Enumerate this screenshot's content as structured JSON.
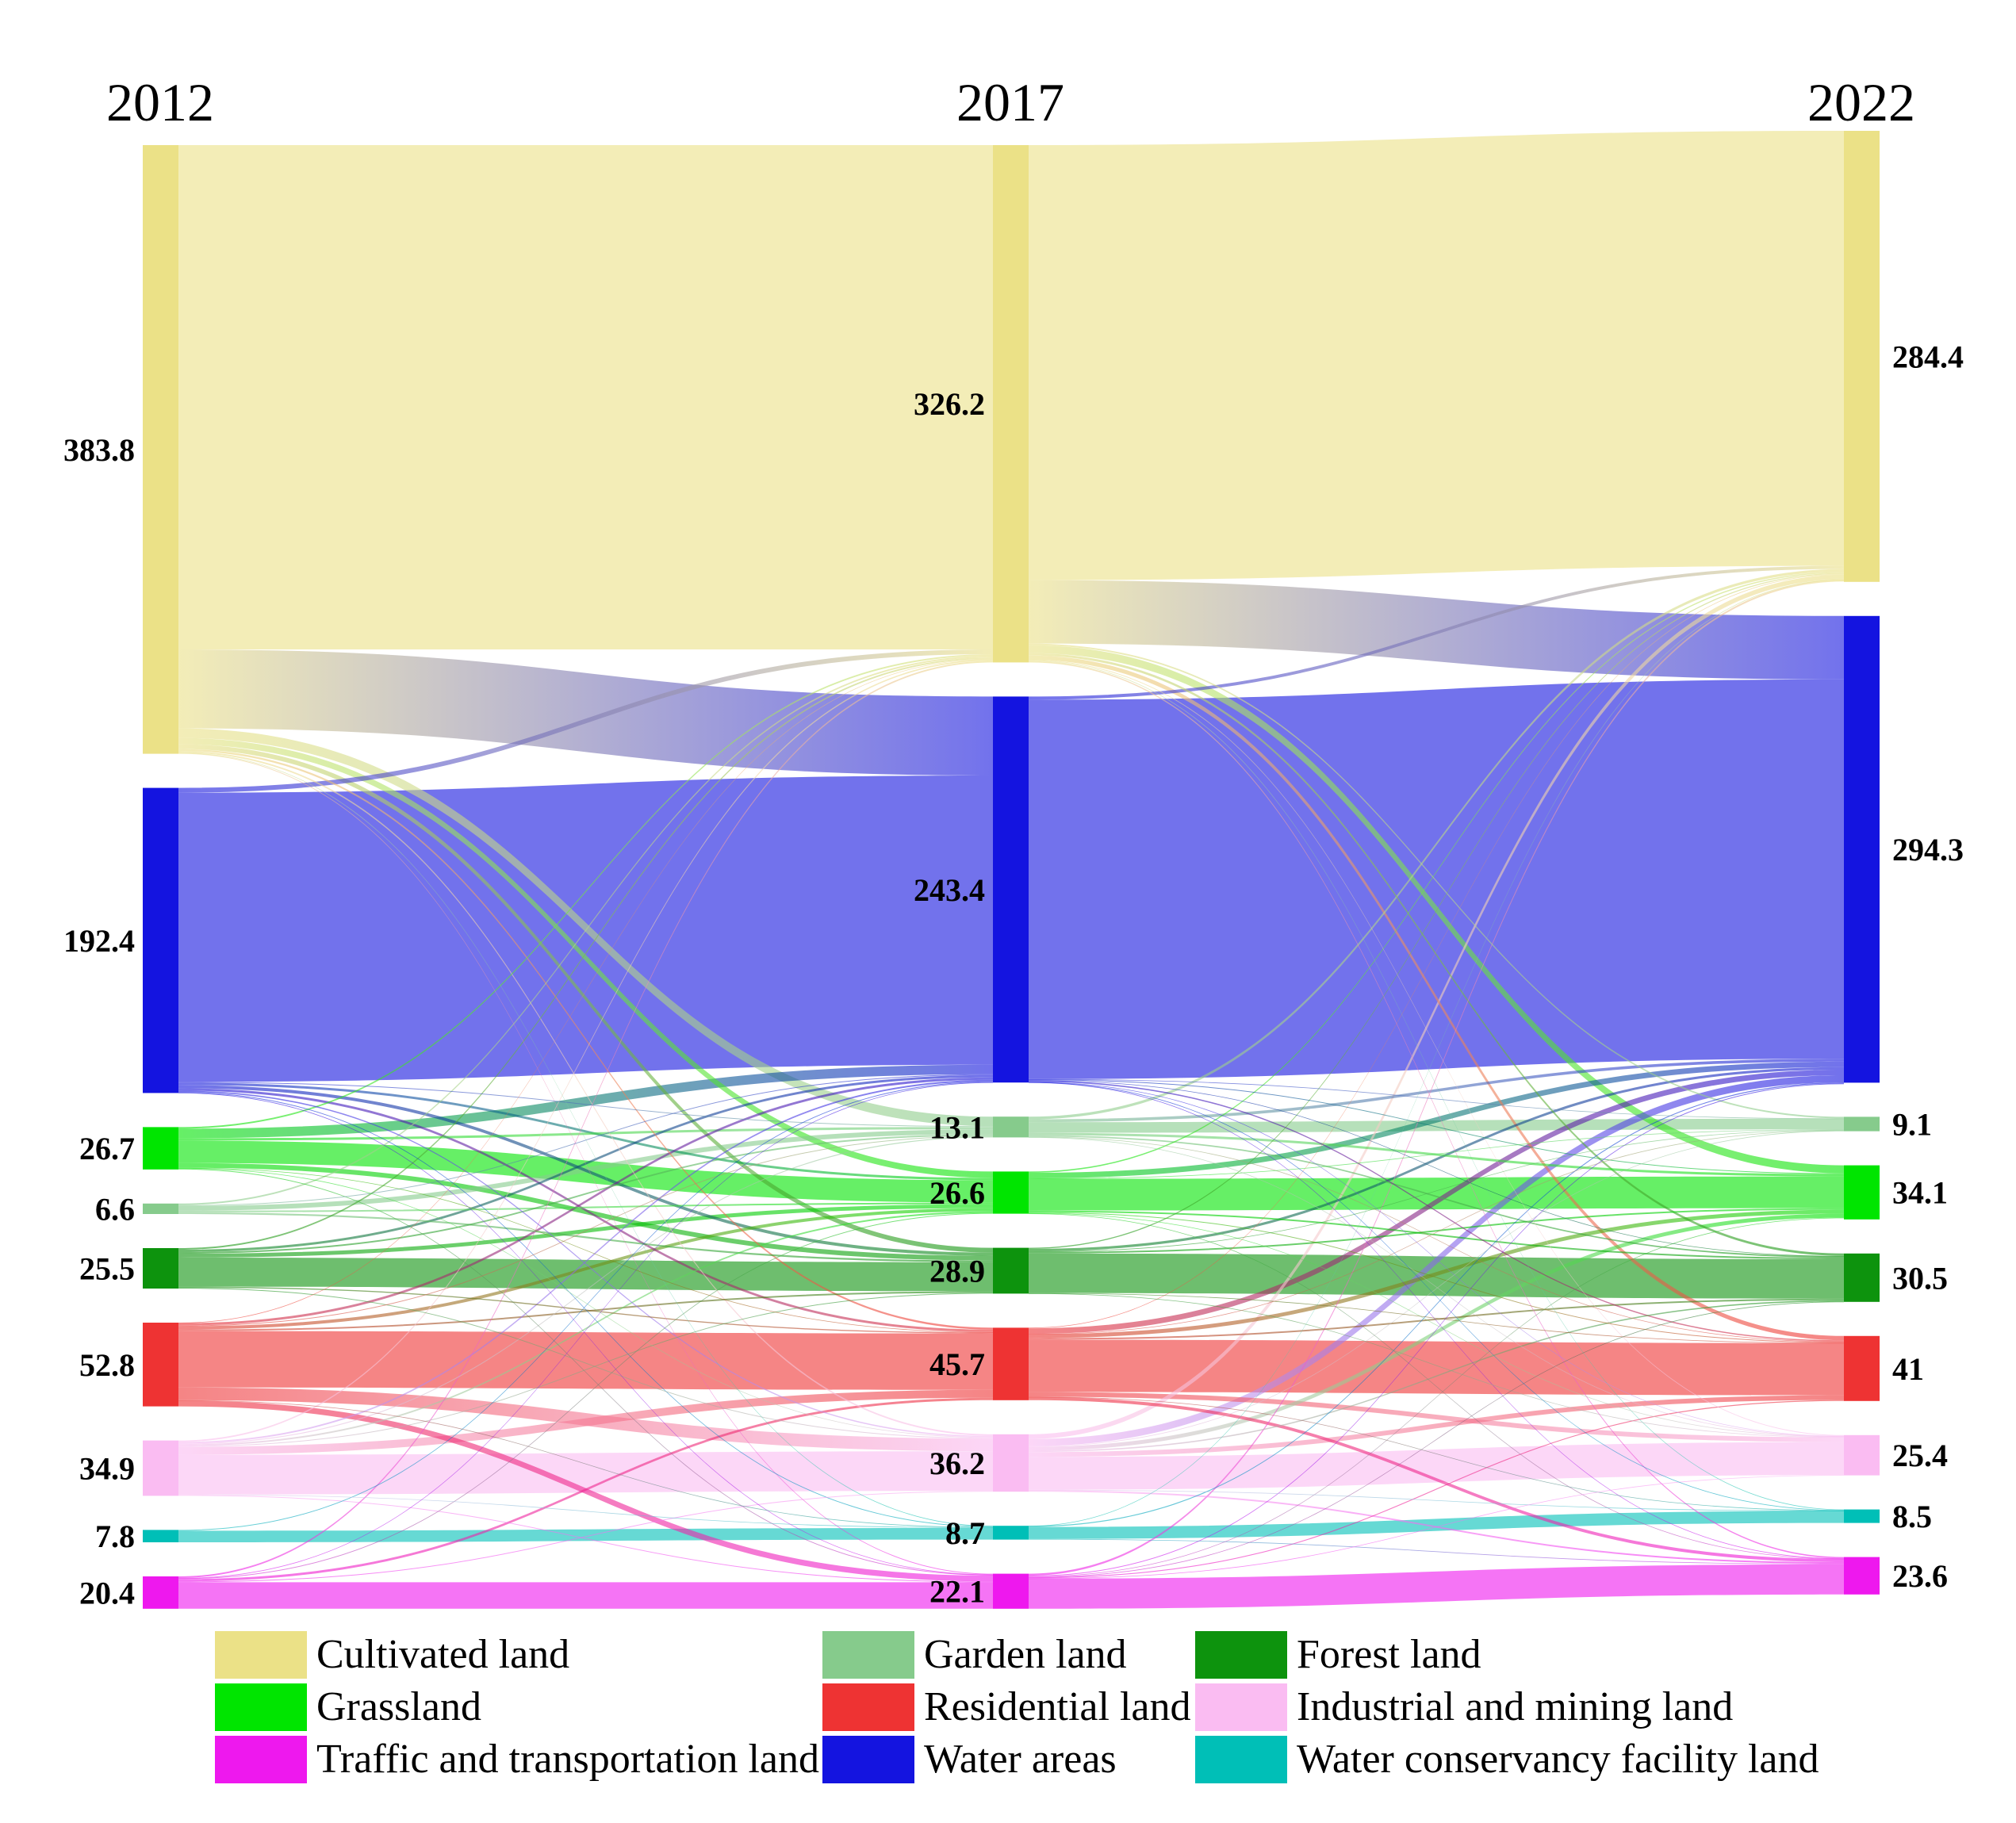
{
  "chart_data": {
    "type": "sankey",
    "title": "",
    "grid": false,
    "legend_position": "bottom",
    "categories": [
      {
        "code": "CUL",
        "name": "Cultivated land",
        "color": "#EBE187"
      },
      {
        "code": "GAR",
        "name": "Garden land",
        "color": "#86CB8C"
      },
      {
        "code": "FOR",
        "name": "Forest land",
        "color": "#0D930D"
      },
      {
        "code": "GRA",
        "name": "Grassland",
        "color": "#00E500"
      },
      {
        "code": "RES",
        "name": "Residential land",
        "color": "#EE3333"
      },
      {
        "code": "IND",
        "name": "Industrial and mining land",
        "color": "#FABCF2"
      },
      {
        "code": "TRA",
        "name": "Traffic and transportation land",
        "color": "#EE18EE"
      },
      {
        "code": "WAT",
        "name": "Water areas",
        "color": "#1414E0"
      },
      {
        "code": "WCF",
        "name": "Water conservancy facility land",
        "color": "#00BFB7"
      }
    ],
    "columns": [
      {
        "year": "2012",
        "nodes": [
          {
            "code": "CUL",
            "value": 383.8,
            "label": "383.8"
          },
          {
            "code": "WAT",
            "value": 192.4,
            "label": "192.4"
          },
          {
            "code": "GRA",
            "value": 26.7,
            "label": "26.7"
          },
          {
            "code": "GAR",
            "value": 6.6,
            "label": "6.6"
          },
          {
            "code": "FOR",
            "value": 25.5,
            "label": "25.5"
          },
          {
            "code": "RES",
            "value": 52.8,
            "label": "52.8"
          },
          {
            "code": "IND",
            "value": 34.9,
            "label": "34.9"
          },
          {
            "code": "WCF",
            "value": 7.8,
            "label": "7.8"
          },
          {
            "code": "TRA",
            "value": 20.4,
            "label": "20.4"
          }
        ]
      },
      {
        "year": "2017",
        "nodes": [
          {
            "code": "CUL",
            "value": 326.2,
            "label": "326.2"
          },
          {
            "code": "WAT",
            "value": 243.4,
            "label": "243.4"
          },
          {
            "code": "GAR",
            "value": 13.1,
            "label": "13.1"
          },
          {
            "code": "GRA",
            "value": 26.6,
            "label": "26.6"
          },
          {
            "code": "FOR",
            "value": 28.9,
            "label": "28.9"
          },
          {
            "code": "RES",
            "value": 45.7,
            "label": "45.7"
          },
          {
            "code": "IND",
            "value": 36.2,
            "label": "36.2"
          },
          {
            "code": "WCF",
            "value": 8.7,
            "label": "8.7"
          },
          {
            "code": "TRA",
            "value": 22.1,
            "label": "22.1"
          }
        ]
      },
      {
        "year": "2022",
        "nodes": [
          {
            "code": "CUL",
            "value": 284.4,
            "label": "284.4"
          },
          {
            "code": "WAT",
            "value": 294.3,
            "label": "294.3"
          },
          {
            "code": "GAR",
            "value": 9.1,
            "label": "9.1"
          },
          {
            "code": "GRA",
            "value": 34.1,
            "label": "34.1"
          },
          {
            "code": "FOR",
            "value": 30.5,
            "label": "30.5"
          },
          {
            "code": "RES",
            "value": 41,
            "label": "41"
          },
          {
            "code": "IND",
            "value": 25.4,
            "label": "25.4"
          },
          {
            "code": "WCF",
            "value": 8.5,
            "label": "8.5"
          },
          {
            "code": "TRA",
            "value": 23.6,
            "label": "23.6"
          }
        ]
      }
    ],
    "links": [
      {
        "stage": "2012-2017",
        "flows": [
          [
            "CUL",
            "CUL",
            318.0
          ],
          [
            "CUL",
            "WAT",
            49.8
          ],
          [
            "CUL",
            "GAR",
            6.0
          ],
          [
            "CUL",
            "GRA",
            4.0
          ],
          [
            "CUL",
            "FOR",
            3.0
          ],
          [
            "CUL",
            "RES",
            1.2
          ],
          [
            "CUL",
            "IND",
            1.0
          ],
          [
            "CUL",
            "WCF",
            0.3
          ],
          [
            "CUL",
            "TRA",
            0.5
          ],
          [
            "WAT",
            "CUL",
            3.0
          ],
          [
            "WAT",
            "WAT",
            182.4
          ],
          [
            "WAT",
            "GAR",
            0.5
          ],
          [
            "WAT",
            "GRA",
            1.5
          ],
          [
            "WAT",
            "FOR",
            2.0
          ],
          [
            "WAT",
            "RES",
            1.5
          ],
          [
            "WAT",
            "IND",
            0.8
          ],
          [
            "WAT",
            "WCF",
            0.5
          ],
          [
            "WAT",
            "TRA",
            0.2
          ],
          [
            "GRA",
            "CUL",
            1.0
          ],
          [
            "GRA",
            "WAT",
            6.0
          ],
          [
            "GRA",
            "GAR",
            1.5
          ],
          [
            "GRA",
            "GRA",
            14.1
          ],
          [
            "GRA",
            "FOR",
            3.0
          ],
          [
            "GRA",
            "RES",
            0.2
          ],
          [
            "GRA",
            "IND",
            0.4
          ],
          [
            "GRA",
            "TRA",
            0.5
          ],
          [
            "GAR",
            "CUL",
            1.0
          ],
          [
            "GAR",
            "WAT",
            0.5
          ],
          [
            "GAR",
            "GAR",
            3.0
          ],
          [
            "GAR",
            "GRA",
            1.0
          ],
          [
            "GAR",
            "FOR",
            1.1
          ],
          [
            "FOR",
            "CUL",
            1.0
          ],
          [
            "FOR",
            "WAT",
            1.5
          ],
          [
            "FOR",
            "GAR",
            1.0
          ],
          [
            "FOR",
            "GRA",
            2.5
          ],
          [
            "FOR",
            "FOR",
            18.3
          ],
          [
            "FOR",
            "RES",
            0.7
          ],
          [
            "FOR",
            "IND",
            0.5
          ],
          [
            "RES",
            "CUL",
            0.3
          ],
          [
            "RES",
            "WAT",
            1.5
          ],
          [
            "RES",
            "GAR",
            0.5
          ],
          [
            "RES",
            "GRA",
            2.0
          ],
          [
            "RES",
            "FOR",
            1.0
          ],
          [
            "RES",
            "RES",
            35.6
          ],
          [
            "RES",
            "IND",
            8.0
          ],
          [
            "RES",
            "WCF",
            0.2
          ],
          [
            "RES",
            "TRA",
            3.7
          ],
          [
            "IND",
            "CUL",
            0.9
          ],
          [
            "IND",
            "WAT",
            1.0
          ],
          [
            "IND",
            "GAR",
            0.6
          ],
          [
            "IND",
            "GRA",
            1.0
          ],
          [
            "IND",
            "FOR",
            0.5
          ],
          [
            "IND",
            "RES",
            5.0
          ],
          [
            "IND",
            "IND",
            25.0
          ],
          [
            "IND",
            "WCF",
            0.4
          ],
          [
            "IND",
            "TRA",
            0.5
          ],
          [
            "WCF",
            "WAT",
            0.5
          ],
          [
            "WCF",
            "WCF",
            7.3
          ],
          [
            "TRA",
            "CUL",
            1.0
          ],
          [
            "TRA",
            "WAT",
            0.2
          ],
          [
            "TRA",
            "GRA",
            0.5
          ],
          [
            "TRA",
            "RES",
            1.5
          ],
          [
            "TRA",
            "IND",
            0.5
          ],
          [
            "TRA",
            "TRA",
            16.7
          ]
        ]
      },
      {
        "stage": "2017-2022",
        "flows": [
          [
            "CUL",
            "CUL",
            274.3
          ],
          [
            "CUL",
            "WAT",
            40.0
          ],
          [
            "CUL",
            "GAR",
            1.0
          ],
          [
            "CUL",
            "GRA",
            5.0
          ],
          [
            "CUL",
            "FOR",
            1.5
          ],
          [
            "CUL",
            "RES",
            2.7
          ],
          [
            "CUL",
            "IND",
            0.5
          ],
          [
            "CUL",
            "WCF",
            0.4
          ],
          [
            "CUL",
            "TRA",
            0.8
          ],
          [
            "WAT",
            "CUL",
            2.0
          ],
          [
            "WAT",
            "WAT",
            239.2
          ],
          [
            "WAT",
            "GAR",
            0.2
          ],
          [
            "WAT",
            "GRA",
            0.5
          ],
          [
            "WAT",
            "FOR",
            0.2
          ],
          [
            "WAT",
            "RES",
            0.8
          ],
          [
            "WAT",
            "IND",
            0.2
          ],
          [
            "WAT",
            "WCF",
            0.1
          ],
          [
            "WAT",
            "TRA",
            0.2
          ],
          [
            "GAR",
            "CUL",
            1.7
          ],
          [
            "GAR",
            "WAT",
            1.8
          ],
          [
            "GAR",
            "GAR",
            6.7
          ],
          [
            "GAR",
            "GRA",
            1.5
          ],
          [
            "GAR",
            "FOR",
            0.9
          ],
          [
            "GAR",
            "RES",
            0.3
          ],
          [
            "GAR",
            "IND",
            0.2
          ],
          [
            "GRA",
            "CUL",
            0.8
          ],
          [
            "GRA",
            "WAT",
            3.5
          ],
          [
            "GRA",
            "GAR",
            0.3
          ],
          [
            "GRA",
            "GRA",
            20.0
          ],
          [
            "GRA",
            "FOR",
            1.0
          ],
          [
            "GRA",
            "RES",
            0.5
          ],
          [
            "GRA",
            "IND",
            0.3
          ],
          [
            "GRA",
            "TRA",
            0.2
          ],
          [
            "FOR",
            "CUL",
            0.7
          ],
          [
            "FOR",
            "WAT",
            1.6
          ],
          [
            "FOR",
            "GAR",
            0.3
          ],
          [
            "FOR",
            "GRA",
            1.0
          ],
          [
            "FOR",
            "FOR",
            24.9
          ],
          [
            "FOR",
            "RES",
            0.2
          ],
          [
            "FOR",
            "IND",
            0.2
          ],
          [
            "RES",
            "CUL",
            0.4
          ],
          [
            "RES",
            "WAT",
            3.5
          ],
          [
            "RES",
            "GAR",
            0.2
          ],
          [
            "RES",
            "GRA",
            2.5
          ],
          [
            "RES",
            "FOR",
            1.0
          ],
          [
            "RES",
            "RES",
            32.9
          ],
          [
            "RES",
            "IND",
            3.0
          ],
          [
            "RES",
            "WCF",
            0.2
          ],
          [
            "RES",
            "TRA",
            2.0
          ],
          [
            "IND",
            "CUL",
            3.0
          ],
          [
            "IND",
            "WAT",
            4.5
          ],
          [
            "IND",
            "GAR",
            0.4
          ],
          [
            "IND",
            "GRA",
            2.5
          ],
          [
            "IND",
            "FOR",
            0.8
          ],
          [
            "IND",
            "RES",
            3.0
          ],
          [
            "IND",
            "IND",
            20.8
          ],
          [
            "IND",
            "WCF",
            0.2
          ],
          [
            "IND",
            "TRA",
            1.0
          ],
          [
            "WCF",
            "CUL",
            0.1
          ],
          [
            "WCF",
            "WAT",
            0.6
          ],
          [
            "WCF",
            "WCF",
            7.6
          ],
          [
            "WCF",
            "TRA",
            0.4
          ],
          [
            "TRA",
            "CUL",
            1.2
          ],
          [
            "TRA",
            "WAT",
            0.5
          ],
          [
            "TRA",
            "GRA",
            0.4
          ],
          [
            "TRA",
            "FOR",
            0.2
          ],
          [
            "TRA",
            "RES",
            0.6
          ],
          [
            "TRA",
            "IND",
            0.2
          ],
          [
            "TRA",
            "TRA",
            19.0
          ]
        ]
      }
    ],
    "legend": {
      "items": [
        "Cultivated land",
        "Garden land",
        "Forest land",
        "Grassland",
        "Residential land",
        "Industrial and mining land",
        "Traffic and transportation land",
        "Water areas",
        "Water conservancy facility land"
      ]
    }
  }
}
